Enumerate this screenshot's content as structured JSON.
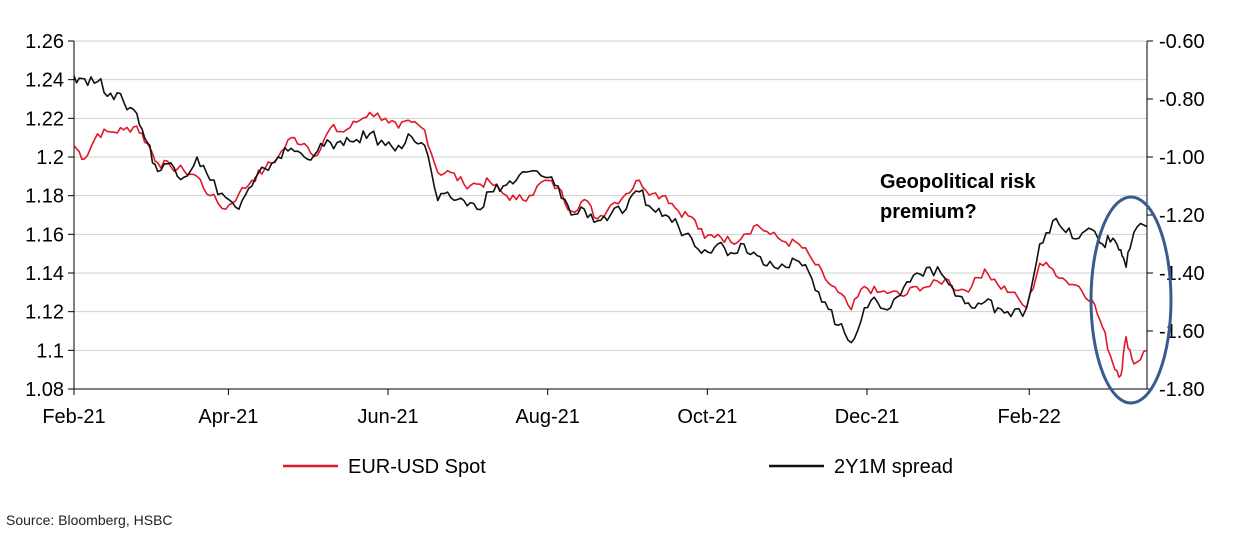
{
  "chart_data": {
    "type": "line",
    "title": "",
    "xlabel": "",
    "ylabel_left": "",
    "ylabel_right": "",
    "x_ticks": [
      "Feb-21",
      "Apr-21",
      "Jun-21",
      "Aug-21",
      "Oct-21",
      "Dec-21",
      "Feb-22"
    ],
    "x_range": [
      "2021-02-01",
      "2022-03-18"
    ],
    "y_left": {
      "range": [
        1.08,
        1.26
      ],
      "ticks": [
        "1.08",
        "1.1",
        "1.12",
        "1.14",
        "1.16",
        "1.18",
        "1.2",
        "1.22",
        "1.24",
        "1.26"
      ]
    },
    "y_right": {
      "range": [
        -1.8,
        -0.6
      ],
      "ticks": [
        "-0.60",
        "-0.80",
        "-1.00",
        "-1.20",
        "-1.40",
        "-1.60",
        "-1.80"
      ]
    },
    "grid": "horizontal",
    "legend": "bottom",
    "annotation": {
      "text_line1": "Geopolitical risk",
      "text_line2": "premium?"
    },
    "highlight": "ellipse around Feb-22 to Mar-22 period",
    "series": [
      {
        "name": "EUR-USD Spot",
        "axis": "left",
        "color": "#e0182a",
        "points": [
          [
            "2021-02-01",
            1.206
          ],
          [
            "2021-02-05",
            1.199
          ],
          [
            "2021-02-10",
            1.212
          ],
          [
            "2021-02-15",
            1.213
          ],
          [
            "2021-02-20",
            1.214
          ],
          [
            "2021-02-25",
            1.216
          ],
          [
            "2021-03-01",
            1.207
          ],
          [
            "2021-03-05",
            1.197
          ],
          [
            "2021-03-10",
            1.195
          ],
          [
            "2021-03-15",
            1.193
          ],
          [
            "2021-03-20",
            1.19
          ],
          [
            "2021-03-25",
            1.18
          ],
          [
            "2021-03-31",
            1.173
          ],
          [
            "2021-04-05",
            1.181
          ],
          [
            "2021-04-10",
            1.188
          ],
          [
            "2021-04-15",
            1.194
          ],
          [
            "2021-04-20",
            1.2
          ],
          [
            "2021-04-25",
            1.21
          ],
          [
            "2021-04-30",
            1.207
          ],
          [
            "2021-05-05",
            1.201
          ],
          [
            "2021-05-10",
            1.215
          ],
          [
            "2021-05-15",
            1.213
          ],
          [
            "2021-05-20",
            1.218
          ],
          [
            "2021-05-25",
            1.223
          ],
          [
            "2021-05-31",
            1.22
          ],
          [
            "2021-06-05",
            1.215
          ],
          [
            "2021-06-10",
            1.218
          ],
          [
            "2021-06-15",
            1.214
          ],
          [
            "2021-06-20",
            1.192
          ],
          [
            "2021-06-25",
            1.192
          ],
          [
            "2021-06-30",
            1.186
          ],
          [
            "2021-07-05",
            1.186
          ],
          [
            "2021-07-10",
            1.187
          ],
          [
            "2021-07-15",
            1.181
          ],
          [
            "2021-07-20",
            1.178
          ],
          [
            "2021-07-25",
            1.18
          ],
          [
            "2021-07-31",
            1.188
          ],
          [
            "2021-08-05",
            1.184
          ],
          [
            "2021-08-10",
            1.172
          ],
          [
            "2021-08-15",
            1.178
          ],
          [
            "2021-08-20",
            1.168
          ],
          [
            "2021-08-25",
            1.175
          ],
          [
            "2021-08-31",
            1.181
          ],
          [
            "2021-09-05",
            1.188
          ],
          [
            "2021-09-10",
            1.181
          ],
          [
            "2021-09-15",
            1.18
          ],
          [
            "2021-09-20",
            1.172
          ],
          [
            "2021-09-25",
            1.169
          ],
          [
            "2021-09-30",
            1.158
          ],
          [
            "2021-10-05",
            1.16
          ],
          [
            "2021-10-10",
            1.156
          ],
          [
            "2021-10-15",
            1.16
          ],
          [
            "2021-10-20",
            1.165
          ],
          [
            "2021-10-25",
            1.16
          ],
          [
            "2021-10-31",
            1.156
          ],
          [
            "2021-11-05",
            1.155
          ],
          [
            "2021-11-10",
            1.147
          ],
          [
            "2021-11-15",
            1.137
          ],
          [
            "2021-11-20",
            1.13
          ],
          [
            "2021-11-25",
            1.121
          ],
          [
            "2021-11-30",
            1.133
          ],
          [
            "2021-12-05",
            1.13
          ],
          [
            "2021-12-10",
            1.13
          ],
          [
            "2021-12-15",
            1.128
          ],
          [
            "2021-12-20",
            1.133
          ],
          [
            "2021-12-25",
            1.133
          ],
          [
            "2021-12-31",
            1.137
          ],
          [
            "2022-01-05",
            1.131
          ],
          [
            "2022-01-10",
            1.133
          ],
          [
            "2022-01-15",
            1.142
          ],
          [
            "2022-01-20",
            1.134
          ],
          [
            "2022-01-25",
            1.13
          ],
          [
            "2022-01-31",
            1.122
          ],
          [
            "2022-02-05",
            1.145
          ],
          [
            "2022-02-10",
            1.142
          ],
          [
            "2022-02-15",
            1.136
          ],
          [
            "2022-02-20",
            1.133
          ],
          [
            "2022-02-25",
            1.126
          ],
          [
            "2022-03-01",
            1.112
          ],
          [
            "2022-03-05",
            1.093
          ],
          [
            "2022-03-08",
            1.087
          ],
          [
            "2022-03-10",
            1.107
          ],
          [
            "2022-03-13",
            1.093
          ],
          [
            "2022-03-18",
            1.1
          ]
        ]
      },
      {
        "name": "2Y1M spread",
        "axis": "right",
        "color": "#111111",
        "points": [
          [
            "2021-02-01",
            -0.72
          ],
          [
            "2021-02-05",
            -0.73
          ],
          [
            "2021-02-10",
            -0.74
          ],
          [
            "2021-02-15",
            -0.78
          ],
          [
            "2021-02-20",
            -0.81
          ],
          [
            "2021-02-25",
            -0.85
          ],
          [
            "2021-03-01",
            -0.95
          ],
          [
            "2021-03-05",
            -1.05
          ],
          [
            "2021-03-10",
            -1.02
          ],
          [
            "2021-03-15",
            -1.07
          ],
          [
            "2021-03-20",
            -1.0
          ],
          [
            "2021-03-25",
            -1.08
          ],
          [
            "2021-03-31",
            -1.14
          ],
          [
            "2021-04-05",
            -1.18
          ],
          [
            "2021-04-10",
            -1.1
          ],
          [
            "2021-04-15",
            -1.04
          ],
          [
            "2021-04-20",
            -1.0
          ],
          [
            "2021-04-25",
            -0.97
          ],
          [
            "2021-04-30",
            -1.0
          ],
          [
            "2021-05-05",
            -0.98
          ],
          [
            "2021-05-10",
            -0.95
          ],
          [
            "2021-05-15",
            -0.96
          ],
          [
            "2021-05-20",
            -0.94
          ],
          [
            "2021-05-25",
            -0.92
          ],
          [
            "2021-05-31",
            -0.96
          ],
          [
            "2021-06-05",
            -0.96
          ],
          [
            "2021-06-10",
            -0.93
          ],
          [
            "2021-06-15",
            -0.96
          ],
          [
            "2021-06-20",
            -1.15
          ],
          [
            "2021-06-25",
            -1.14
          ],
          [
            "2021-06-30",
            -1.15
          ],
          [
            "2021-07-05",
            -1.18
          ],
          [
            "2021-07-10",
            -1.12
          ],
          [
            "2021-07-15",
            -1.1
          ],
          [
            "2021-07-20",
            -1.08
          ],
          [
            "2021-07-25",
            -1.05
          ],
          [
            "2021-07-31",
            -1.07
          ],
          [
            "2021-08-05",
            -1.1
          ],
          [
            "2021-08-10",
            -1.2
          ],
          [
            "2021-08-15",
            -1.18
          ],
          [
            "2021-08-20",
            -1.22
          ],
          [
            "2021-08-25",
            -1.2
          ],
          [
            "2021-08-31",
            -1.18
          ],
          [
            "2021-09-05",
            -1.12
          ],
          [
            "2021-09-10",
            -1.18
          ],
          [
            "2021-09-15",
            -1.2
          ],
          [
            "2021-09-20",
            -1.24
          ],
          [
            "2021-09-25",
            -1.28
          ],
          [
            "2021-09-30",
            -1.32
          ],
          [
            "2021-10-05",
            -1.3
          ],
          [
            "2021-10-10",
            -1.33
          ],
          [
            "2021-10-15",
            -1.3
          ],
          [
            "2021-10-20",
            -1.34
          ],
          [
            "2021-10-25",
            -1.36
          ],
          [
            "2021-10-31",
            -1.38
          ],
          [
            "2021-11-05",
            -1.36
          ],
          [
            "2021-11-10",
            -1.42
          ],
          [
            "2021-11-15",
            -1.5
          ],
          [
            "2021-11-20",
            -1.58
          ],
          [
            "2021-11-25",
            -1.64
          ],
          [
            "2021-11-30",
            -1.52
          ],
          [
            "2021-12-05",
            -1.5
          ],
          [
            "2021-12-10",
            -1.52
          ],
          [
            "2021-12-15",
            -1.45
          ],
          [
            "2021-12-20",
            -1.4
          ],
          [
            "2021-12-25",
            -1.38
          ],
          [
            "2021-12-31",
            -1.42
          ],
          [
            "2022-01-05",
            -1.48
          ],
          [
            "2022-01-10",
            -1.52
          ],
          [
            "2022-01-15",
            -1.5
          ],
          [
            "2022-01-20",
            -1.52
          ],
          [
            "2022-01-25",
            -1.55
          ],
          [
            "2022-01-31",
            -1.52
          ],
          [
            "2022-02-05",
            -1.3
          ],
          [
            "2022-02-10",
            -1.22
          ],
          [
            "2022-02-15",
            -1.26
          ],
          [
            "2022-02-20",
            -1.28
          ],
          [
            "2022-02-25",
            -1.25
          ],
          [
            "2022-03-01",
            -1.3
          ],
          [
            "2022-03-05",
            -1.28
          ],
          [
            "2022-03-08",
            -1.32
          ],
          [
            "2022-03-10",
            -1.38
          ],
          [
            "2022-03-13",
            -1.26
          ],
          [
            "2022-03-18",
            -1.24
          ]
        ]
      }
    ]
  },
  "source": "Source: Bloomberg, HSBC"
}
